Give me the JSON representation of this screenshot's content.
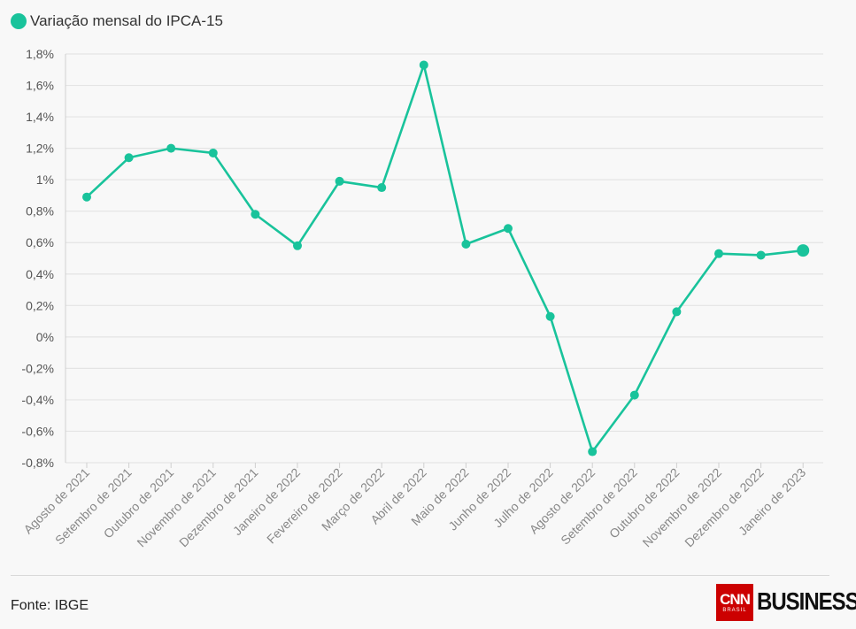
{
  "legend": {
    "label": "Variação mensal do IPCA-15",
    "color": "#19c39b"
  },
  "source": "Fonte: IBGE",
  "logo": {
    "brand": "CNN",
    "sub": "BRASIL",
    "section": "BUSINESS"
  },
  "chart_data": {
    "type": "line",
    "title": "",
    "xlabel": "",
    "ylabel": "",
    "grid": true,
    "legend_position": "top-left",
    "ylim": [
      -0.8,
      1.8
    ],
    "yticks": [
      1.8,
      1.6,
      1.4,
      1.2,
      1,
      0.8,
      0.6,
      0.4,
      0.2,
      0,
      -0.2,
      -0.4,
      -0.6,
      -0.8
    ],
    "ytick_labels": [
      "1,8%",
      "1,6%",
      "1,4%",
      "1,2%",
      "1%",
      "0,8%",
      "0,6%",
      "0,4%",
      "0,2%",
      "0%",
      "-0,2%",
      "-0,4%",
      "-0,6%",
      "-0,8%"
    ],
    "categories": [
      "Agosto de 2021",
      "Setembro de 2021",
      "Outubro de 2021",
      "Novembro de 2021",
      "Dezembro de 2021",
      "Janeiro de 2022",
      "Fevereiro de 2022",
      "Março de 2022",
      "Abril de 2022",
      "Maio de 2022",
      "Junho de 2022",
      "Julho de 2022",
      "Agosto de 2022",
      "Setembro de 2022",
      "Outubro de 2022",
      "Novembro de 2022",
      "Dezembro de 2022",
      "Janeiro de 2023"
    ],
    "series": [
      {
        "name": "Variação mensal do IPCA-15",
        "color": "#19c39b",
        "values": [
          0.89,
          1.14,
          1.2,
          1.17,
          0.78,
          0.58,
          0.99,
          0.95,
          1.73,
          0.59,
          0.69,
          0.13,
          -0.73,
          -0.37,
          0.16,
          0.53,
          0.52,
          0.55
        ]
      }
    ]
  }
}
